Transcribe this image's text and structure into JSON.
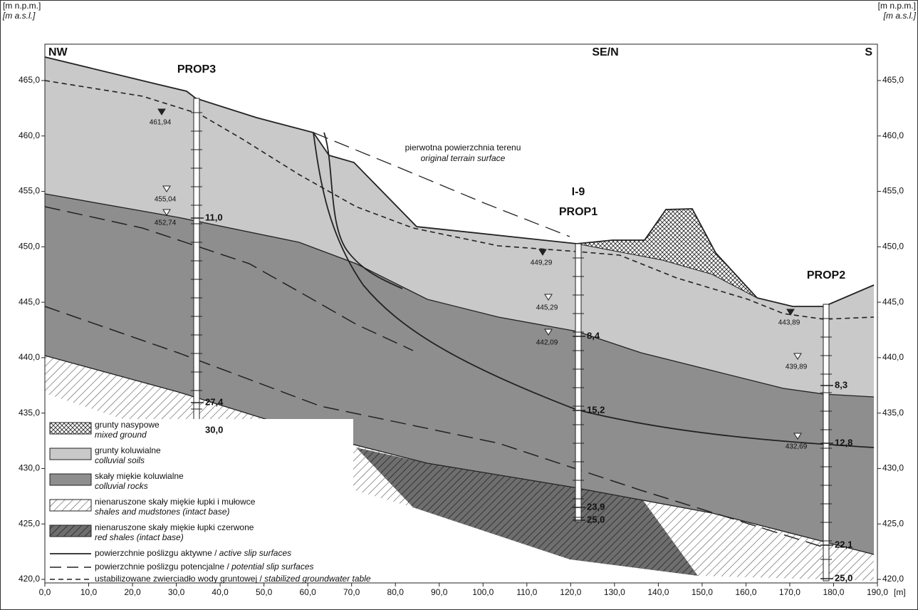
{
  "header": {
    "left_units": [
      "[m n.p.m.]",
      "[m a.s.l.]"
    ],
    "right_units": [
      "[m n.p.m.]",
      "[m a.s.l.]"
    ]
  },
  "directions": [
    "NW",
    "SE/N",
    "S"
  ],
  "boreholes": [
    {
      "names": [
        "PROP3"
      ],
      "depths": [
        "11,0",
        "27,4",
        "30,0"
      ]
    },
    {
      "names": [
        "I-9",
        "PROP1"
      ],
      "depths": [
        "8,4",
        "15,2",
        "23,9",
        "25,0"
      ]
    },
    {
      "names": [
        "PROP2"
      ],
      "depths": [
        "8,3",
        "12,8",
        "22,1",
        "25,0"
      ]
    }
  ],
  "water_levels": [
    "461,94",
    "455,04",
    "452,74",
    "449,29",
    "445,29",
    "442,09",
    "443,89",
    "439,89",
    "432,69"
  ],
  "annotation": [
    "pierwotna powierzchnia terenu",
    "original terrain surface"
  ],
  "legend": [
    {
      "pl": "grunty nasypowe",
      "en": "mixed ground"
    },
    {
      "pl": "grunty koluwialne",
      "en": "colluvial soils"
    },
    {
      "pl": "skały miękie koluwialne",
      "en": "colluvial rocks"
    },
    {
      "pl": "nienaruszone skały miękie łupki i mułowce",
      "en": "shales and mudstones (intact base)"
    },
    {
      "pl": "nienaruszone skały miękie łupki czerwone",
      "en": "red shales (intact base)"
    },
    {
      "pl": "powierzchnie poślizgu aktywne / ",
      "en": "active slip surfaces"
    },
    {
      "pl": "powierzchnie poślizgu potencjalne / ",
      "en": "potential slip surfaces"
    },
    {
      "pl": "ustabilizowane zwierciadło wody gruntowej / ",
      "en": "stabilized groundwater table"
    }
  ],
  "axes": {
    "y_ticks": [
      "465,0",
      "460,0",
      "455,0",
      "450,0",
      "445,0",
      "440,0",
      "435,0",
      "430,0",
      "425,0",
      "420,0"
    ],
    "x_ticks": [
      "0,0",
      "10,0",
      "20,0",
      "30,0",
      "40,0",
      "50,0",
      "60,0",
      "70,0",
      "80,0",
      "90,0",
      "100,0",
      "110,0",
      "120,0",
      "130,0",
      "140,0",
      "150,0",
      "160,0",
      "170,0",
      "180,0",
      "190,0"
    ],
    "x_unit": "[m]"
  }
}
